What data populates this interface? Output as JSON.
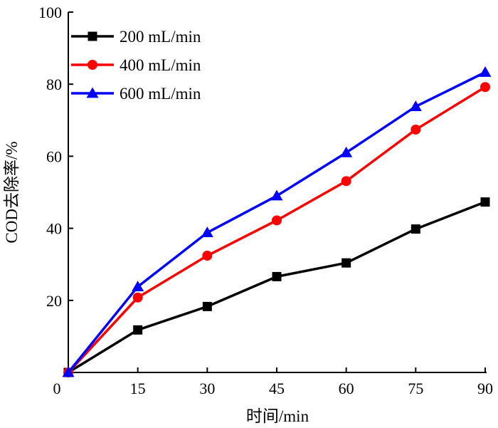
{
  "chart_data": {
    "type": "line",
    "xlabel": "时间/min",
    "ylabel": "COD去除率/%",
    "xlim": [
      0,
      90
    ],
    "ylim": [
      0,
      100
    ],
    "xticks": [
      0,
      15,
      30,
      45,
      60,
      75,
      90
    ],
    "yticks": [
      20,
      40,
      60,
      80,
      100
    ],
    "grid": false,
    "legend_position": "top-left",
    "x": [
      0,
      15,
      30,
      45,
      60,
      75,
      90
    ],
    "series": [
      {
        "name": "200 mL/min",
        "color": "#000000",
        "marker": "square",
        "values": [
          0,
          11.8,
          18.3,
          26.6,
          30.4,
          39.8,
          47.3
        ]
      },
      {
        "name": "400 mL/min",
        "color": "#ff0000",
        "marker": "circle",
        "values": [
          0,
          20.8,
          32.4,
          42.2,
          53.1,
          67.4,
          79.2
        ]
      },
      {
        "name": "600 mL/min",
        "color": "#0000ff",
        "marker": "triangle",
        "values": [
          0,
          23.8,
          38.8,
          49.0,
          61.0,
          73.8,
          83.3
        ]
      }
    ]
  }
}
